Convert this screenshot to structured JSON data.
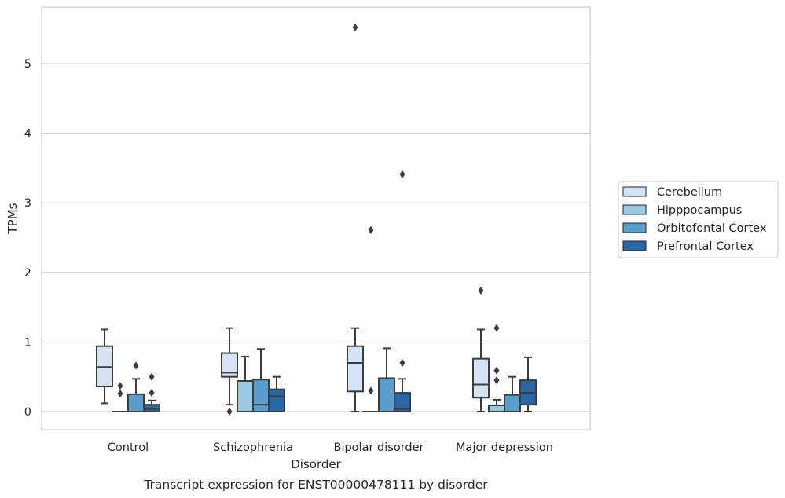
{
  "chart_data": {
    "type": "boxplot",
    "title": "Transcript expression for ENST00000478111 by disorder",
    "xlabel": "Disorder",
    "ylabel": "TPMs",
    "ylim": [
      -0.27,
      5.82
    ],
    "yticks": [
      0,
      1,
      2,
      3,
      4,
      5
    ],
    "grid": "horizontal",
    "legend_position": "right",
    "categories": [
      "Control",
      "Schizophrenia",
      "Bipolar disorder",
      "Major depression"
    ],
    "series": [
      {
        "name": "Cerebellum",
        "color": "#d3e3f3",
        "boxes": [
          {
            "min": 0.12,
            "q1": 0.36,
            "median": 0.64,
            "q3": 0.94,
            "max": 1.18,
            "outliers": []
          },
          {
            "min": 0.1,
            "q1": 0.5,
            "median": 0.56,
            "q3": 0.84,
            "max": 1.2,
            "outliers": [
              0.0
            ]
          },
          {
            "min": 0.0,
            "q1": 0.29,
            "median": 0.7,
            "q3": 0.94,
            "max": 1.2,
            "outliers": [
              5.52
            ]
          },
          {
            "min": 0.0,
            "q1": 0.2,
            "median": 0.39,
            "q3": 0.76,
            "max": 1.18,
            "outliers": [
              1.74
            ]
          }
        ]
      },
      {
        "name": "Hipppocampus",
        "color": "#9ac8e0",
        "boxes": [
          {
            "min": 0.0,
            "q1": 0.0,
            "median": 0.0,
            "q3": 0.0,
            "max": 0.0,
            "outliers": [
              0.26,
              0.37
            ]
          },
          {
            "min": 0.0,
            "q1": 0.0,
            "median": 0.0,
            "q3": 0.44,
            "max": 0.79,
            "outliers": []
          },
          {
            "min": 0.0,
            "q1": 0.0,
            "median": 0.0,
            "q3": 0.0,
            "max": 0.0,
            "outliers": [
              0.3,
              2.61
            ]
          },
          {
            "min": 0.0,
            "q1": 0.0,
            "median": 0.0,
            "q3": 0.09,
            "max": 0.17,
            "outliers": [
              0.45,
              0.59,
              1.2
            ]
          }
        ]
      },
      {
        "name": "Orbitofontal Cortex",
        "color": "#5a9ecd",
        "boxes": [
          {
            "min": 0.0,
            "q1": 0.0,
            "median": 0.0,
            "q3": 0.25,
            "max": 0.47,
            "outliers": [
              0.66
            ]
          },
          {
            "min": 0.0,
            "q1": 0.0,
            "median": 0.1,
            "q3": 0.46,
            "max": 0.9,
            "outliers": []
          },
          {
            "min": 0.0,
            "q1": 0.0,
            "median": 0.0,
            "q3": 0.48,
            "max": 0.91,
            "outliers": []
          },
          {
            "min": 0.0,
            "q1": 0.0,
            "median": 0.0,
            "q3": 0.24,
            "max": 0.5,
            "outliers": []
          }
        ]
      },
      {
        "name": "Prefrontal Cortex",
        "color": "#2967a8",
        "boxes": [
          {
            "min": 0.0,
            "q1": 0.0,
            "median": 0.04,
            "q3": 0.1,
            "max": 0.16,
            "outliers": [
              0.27,
              0.5
            ]
          },
          {
            "min": 0.0,
            "q1": 0.0,
            "median": 0.22,
            "q3": 0.32,
            "max": 0.5,
            "outliers": []
          },
          {
            "min": 0.0,
            "q1": 0.0,
            "median": 0.04,
            "q3": 0.27,
            "max": 0.47,
            "outliers": [
              0.7,
              3.41
            ]
          },
          {
            "min": 0.0,
            "q1": 0.1,
            "median": 0.27,
            "q3": 0.45,
            "max": 0.78,
            "outliers": []
          }
        ]
      }
    ]
  }
}
